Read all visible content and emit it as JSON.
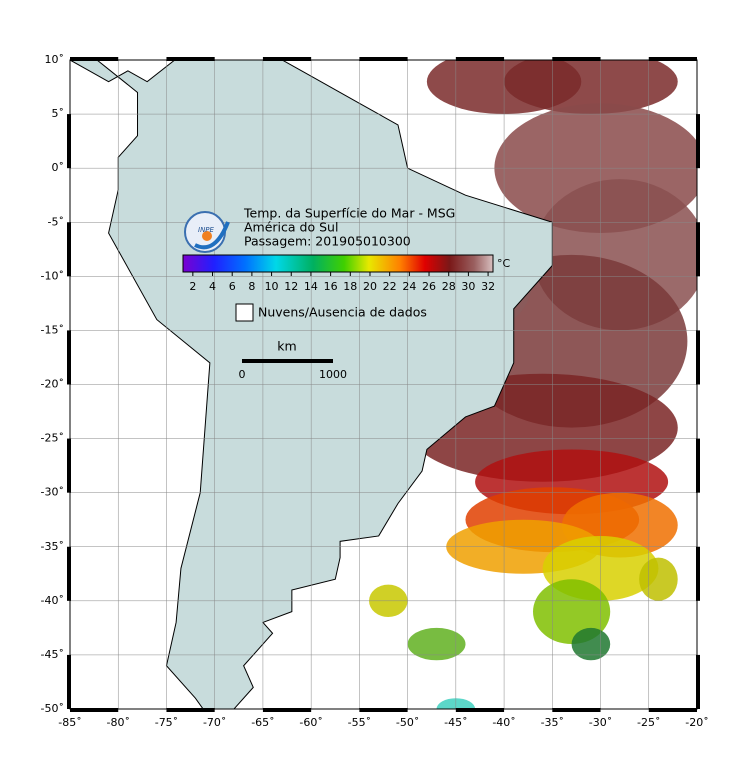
{
  "map": {
    "title_lines": [
      "Temp. da Superfície do Mar - MSG",
      "América do Sul",
      "Passagem: 201905010300"
    ],
    "logo_text": "INPE",
    "colorbar": {
      "ticks": [
        2,
        4,
        6,
        8,
        10,
        12,
        14,
        16,
        18,
        20,
        22,
        24,
        26,
        28,
        30,
        32
      ],
      "unit": "°C"
    },
    "legend": "Nuvens/Ausencia de dados",
    "scale": {
      "unit": "km",
      "start": "0",
      "end": "1000"
    },
    "lat_labels": [
      "10˚",
      "5˚",
      "0˚",
      "-5˚",
      "-10˚",
      "-15˚",
      "-20˚",
      "-25˚",
      "-30˚",
      "-35˚",
      "-40˚",
      "-45˚",
      "-50˚"
    ],
    "lon_labels": [
      "-85˚",
      "-80˚",
      "-75˚",
      "-70˚",
      "-65˚",
      "-60˚",
      "-55˚",
      "-50˚",
      "-45˚",
      "-40˚",
      "-35˚",
      "-30˚",
      "-25˚",
      "-20˚"
    ]
  }
}
